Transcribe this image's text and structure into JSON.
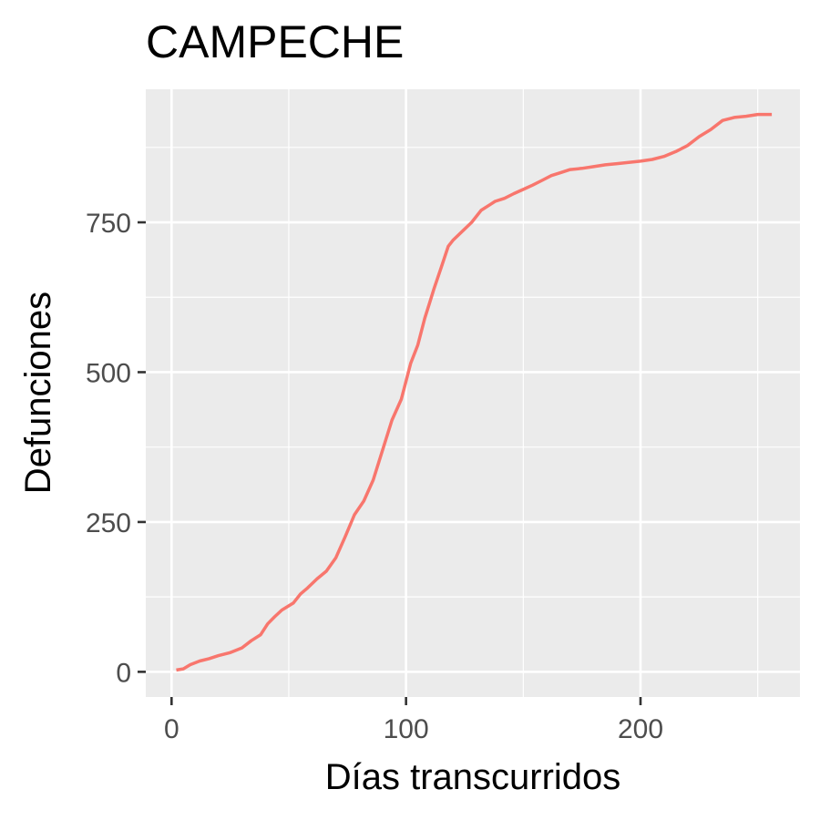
{
  "chart_data": {
    "type": "line",
    "title": "CAMPECHE",
    "xlabel": "Días transcurridos",
    "ylabel": "Defunciones",
    "xlim": [
      -11,
      268
    ],
    "ylim": [
      -42,
      972
    ],
    "x_ticks": [
      0,
      100,
      200
    ],
    "x_tick_labels": [
      "0",
      "100",
      "200"
    ],
    "x_minor_ticks": [
      50,
      150,
      250
    ],
    "y_ticks": [
      0,
      250,
      500,
      750
    ],
    "y_tick_labels": [
      "0",
      "250",
      "500",
      "750"
    ],
    "y_minor_ticks": [
      125,
      375,
      625,
      875
    ],
    "grid": true,
    "legend": "none",
    "colors": {
      "panel": "#ebebeb",
      "grid": "#ffffff",
      "line": "#f8766d",
      "tick": "#333333"
    },
    "series": [
      {
        "x": [
          2,
          5,
          8,
          12,
          16,
          20,
          25,
          30,
          34,
          38,
          41,
          44,
          47,
          52,
          55,
          58,
          62,
          66,
          70,
          74,
          78,
          82,
          86,
          90,
          94,
          98,
          102,
          105,
          108,
          110,
          112,
          115,
          118,
          120,
          124,
          128,
          132,
          136,
          138,
          142,
          146,
          150,
          154,
          158,
          162,
          166,
          170,
          175,
          180,
          185,
          190,
          195,
          200,
          205,
          210,
          215,
          220,
          225,
          230,
          235,
          240,
          245,
          250,
          256
        ],
        "y": [
          3,
          5,
          12,
          18,
          22,
          27,
          32,
          40,
          52,
          62,
          80,
          92,
          103,
          115,
          130,
          140,
          155,
          168,
          190,
          225,
          262,
          285,
          320,
          370,
          420,
          455,
          515,
          545,
          590,
          615,
          640,
          675,
          710,
          720,
          735,
          750,
          770,
          780,
          785,
          790,
          798,
          805,
          812,
          820,
          828,
          833,
          838,
          840,
          843,
          846,
          848,
          850,
          852,
          855,
          860,
          868,
          878,
          893,
          905,
          920,
          925,
          927,
          930,
          930
        ]
      }
    ]
  }
}
